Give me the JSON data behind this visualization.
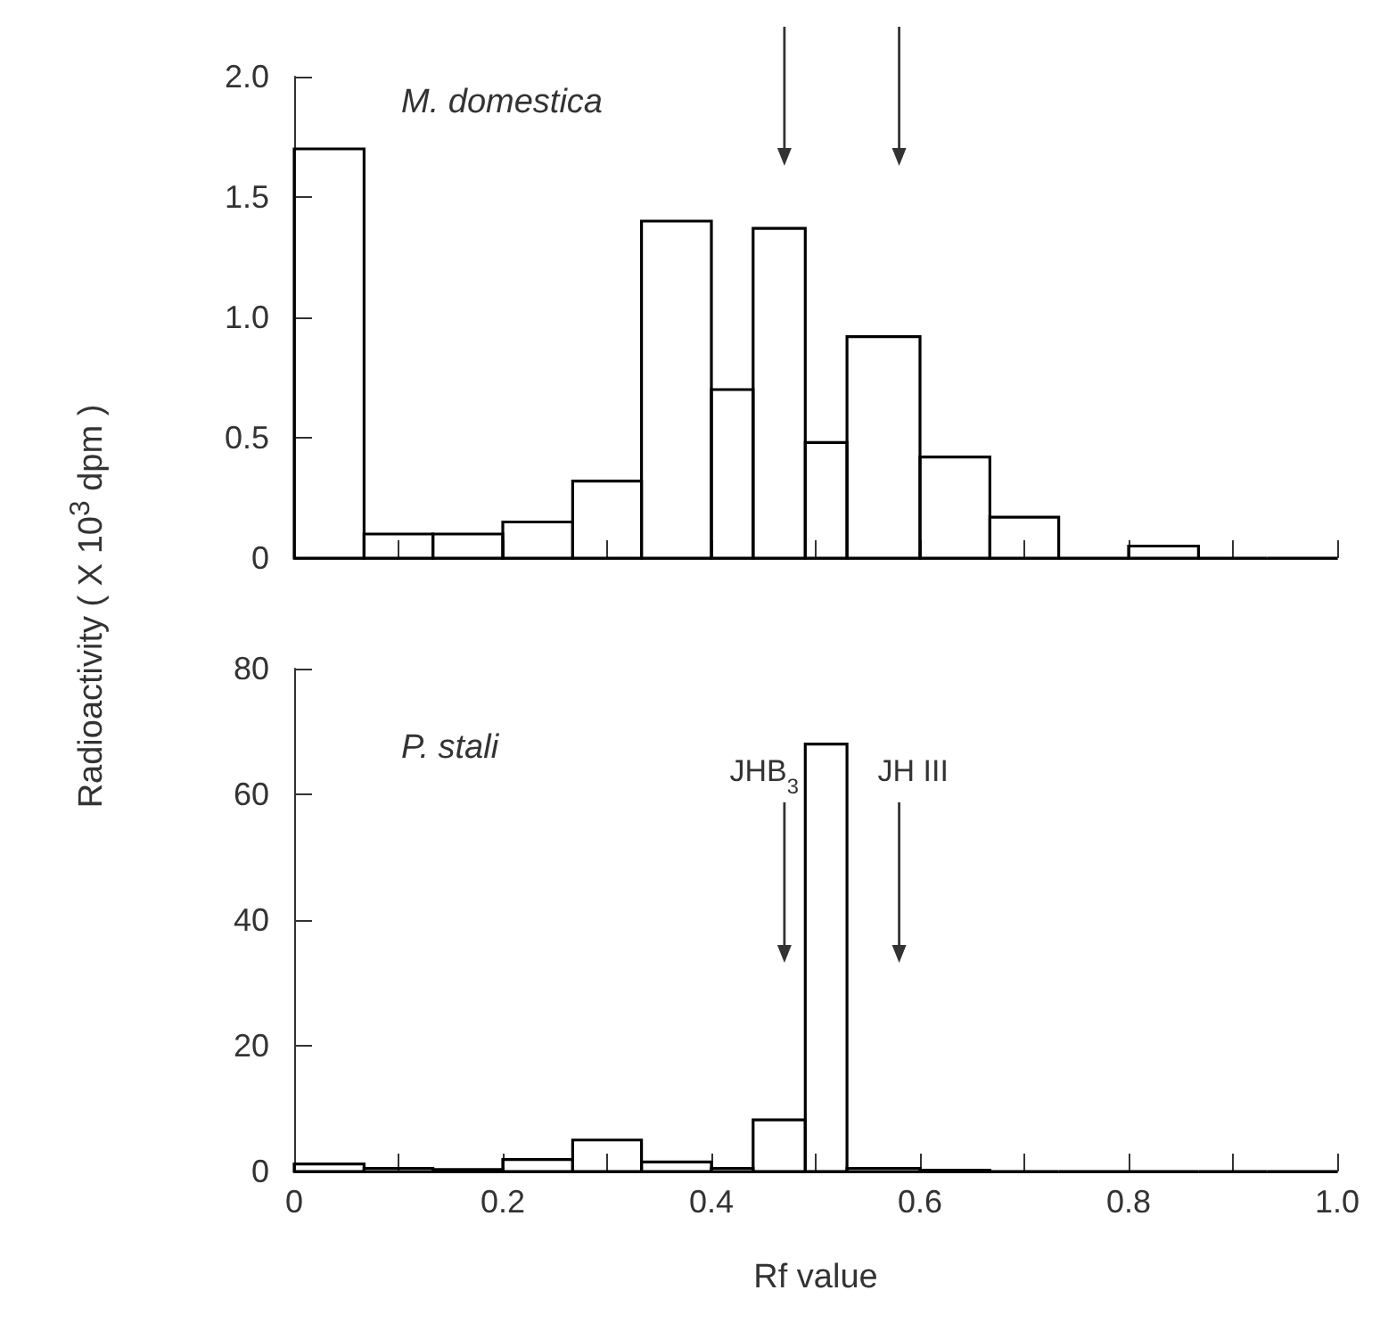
{
  "chart_data": [
    {
      "type": "histogram",
      "ylabel": "Radioactivity  ( X 10$^{3}$ dpm )",
      "annotations": [
        "M. domestica"
      ],
      "bins": [
        0,
        0.067,
        0.133,
        0.2,
        0.267,
        0.333,
        0.4,
        0.44,
        0.49,
        0.53,
        0.6,
        0.667,
        0.733,
        0.8,
        0.867,
        0.933,
        1.0
      ],
      "values": [
        1.7,
        0.1,
        0.1,
        0.15,
        0.32,
        1.4,
        0.7,
        1.37,
        0.48,
        0.92,
        0.42,
        0.17,
        0,
        0.05,
        0,
        0
      ],
      "color": "#000000",
      "xlim": [
        0,
        1.0
      ],
      "xticks": [
        {
          "value": 0,
          "label": null
        },
        {
          "value": 0.1,
          "label": null
        },
        {
          "value": 0.2,
          "label": null
        },
        {
          "value": 0.3,
          "label": null
        },
        {
          "value": 0.4,
          "label": null
        },
        {
          "value": 0.5,
          "label": null
        },
        {
          "value": 0.6,
          "label": null
        },
        {
          "value": 0.7,
          "label": null
        },
        {
          "value": 0.8,
          "label": null
        },
        {
          "value": 0.9,
          "label": null
        },
        {
          "value": 1.0,
          "label": null
        }
      ],
      "ylim": [
        0,
        2.0
      ],
      "yticks": [
        0,
        0.5,
        {
          "value": 1,
          "label": "1.0"
        },
        1.5,
        {
          "value": 2,
          "label": "2.0"
        }
      ],
      "ref_lines": [
        {
          "axis": "x",
          "value": 0.47
        },
        {
          "axis": "x",
          "value": 0.58
        }
      ],
      "tick_labels": "y"
    },
    {
      "type": "histogram",
      "xlabel": "Rf value",
      "annotations": [
        "P. stali"
      ],
      "ref_lines": [
        {
          "axis": "x",
          "value": 0.47,
          "label": "JHB$_{3}$"
        },
        {
          "axis": "x",
          "value": 0.58,
          "label": "JH III"
        }
      ],
      "bins": [
        0,
        0.067,
        0.133,
        0.2,
        0.267,
        0.333,
        0.4,
        0.44,
        0.49,
        0.53,
        0.6,
        0.667,
        0.733,
        0.8,
        0.867,
        0.933,
        1.0
      ],
      "values": [
        1.2,
        0.5,
        0.3,
        1.9,
        5,
        1.5,
        0.5,
        8.2,
        68,
        0.5,
        0.2,
        0,
        0,
        0,
        0,
        0
      ],
      "color": "#000000",
      "xlim": [
        0,
        1.0
      ],
      "xticks": [
        0,
        {
          "value": 0.1,
          "label": null
        },
        0.2,
        {
          "value": 0.3,
          "label": null
        },
        0.4,
        {
          "value": 0.5,
          "label": null
        },
        0.6,
        {
          "value": 0.7,
          "label": null
        },
        0.8,
        {
          "value": 0.9,
          "label": null
        },
        {
          "value": 1,
          "label": "1.0"
        }
      ],
      "ylim": [
        0,
        80
      ],
      "yticks": [
        0,
        20,
        40,
        60,
        80
      ]
    }
  ]
}
